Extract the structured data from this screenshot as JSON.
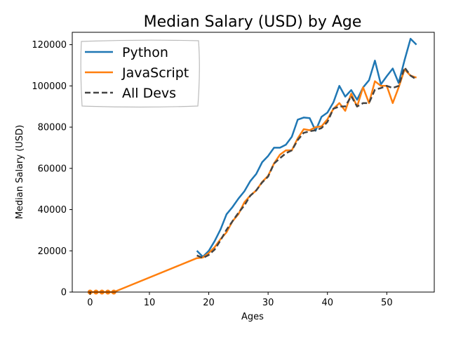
{
  "chart_data": {
    "type": "line",
    "title": "Median Salary (USD) by Age",
    "xlabel": "Ages",
    "ylabel": "Median Salary (USD)",
    "xlim": [
      -3,
      58
    ],
    "ylim": [
      0,
      126000
    ],
    "xticks": [
      0,
      10,
      20,
      30,
      40,
      50
    ],
    "yticks": [
      0,
      20000,
      40000,
      60000,
      80000,
      100000,
      120000
    ],
    "grid": false,
    "legend": "top-left",
    "series": [
      {
        "name": "Python",
        "color": "#1f77b4",
        "style": "solid",
        "x": [
          0,
          1,
          2,
          3,
          4,
          18,
          19,
          20,
          21,
          22,
          23,
          24,
          25,
          26,
          27,
          28,
          29,
          30,
          31,
          32,
          33,
          34,
          35,
          36,
          37,
          38,
          39,
          40,
          41,
          42,
          43,
          44,
          45,
          46,
          47,
          48,
          49,
          50,
          51,
          52,
          53,
          54,
          55
        ],
        "y": [
          null,
          null,
          null,
          null,
          null,
          20046,
          17100,
          20000,
          24744,
          30500,
          37732,
          41247,
          45372,
          48876,
          53850,
          57287,
          63016,
          65998,
          70003,
          70000,
          71496,
          75370,
          83640,
          84666,
          84392,
          78254,
          85000,
          87038,
          91991,
          100000,
          94796,
          97962,
          93302,
          99240,
          102736,
          112285,
          100771,
          104708,
          108423,
          101407,
          112542,
          122870,
          120000
        ]
      },
      {
        "name": "JavaScript",
        "color": "#ff7f0e",
        "style": "solid",
        "x": [
          0,
          1,
          2,
          3,
          4,
          18,
          19,
          20,
          21,
          22,
          23,
          24,
          25,
          26,
          27,
          28,
          29,
          30,
          31,
          32,
          33,
          34,
          35,
          36,
          37,
          38,
          39,
          40,
          41,
          42,
          43,
          44,
          45,
          46,
          47,
          48,
          49,
          50,
          51,
          52,
          53,
          54,
          55
        ],
        "y": [
          0,
          0,
          0,
          0,
          0,
          16446,
          16791,
          18942,
          21780,
          25704,
          29000,
          34372,
          37810,
          43515,
          46823,
          49293,
          53437,
          56373,
          62375,
          66674,
          68745,
          68746,
          74583,
          79000,
          78508,
          79996,
          80403,
          83820,
          88833,
          91660,
          87892,
          96243,
          90000,
          99313,
          91660,
          102264,
          100000,
          100000,
          91660,
          99240,
          108000,
          105000,
          104000
        ]
      },
      {
        "name": "All Devs",
        "color": "#444444",
        "style": "dashed",
        "x": [
          0,
          1,
          2,
          3,
          4,
          18,
          19,
          20,
          21,
          22,
          23,
          24,
          25,
          26,
          27,
          28,
          29,
          30,
          31,
          32,
          33,
          34,
          35,
          36,
          37,
          38,
          39,
          40,
          41,
          42,
          43,
          44,
          45,
          46,
          47,
          48,
          49,
          50,
          51,
          52,
          53,
          54,
          55
        ],
        "y": [
          null,
          null,
          null,
          null,
          null,
          17784,
          16500,
          18012,
          20628,
          25206,
          30252,
          34368,
          38496,
          42000,
          46752,
          49320,
          53200,
          56000,
          62316,
          64928,
          67317,
          68748,
          73752,
          77232,
          78000,
          78508,
          79536,
          82488,
          88935,
          90000,
          90056,
          95000,
          90000,
          91633,
          91660,
          98150,
          98964,
          100000,
          98988,
          100000,
          108923,
          105000,
          103117
        ]
      }
    ]
  }
}
